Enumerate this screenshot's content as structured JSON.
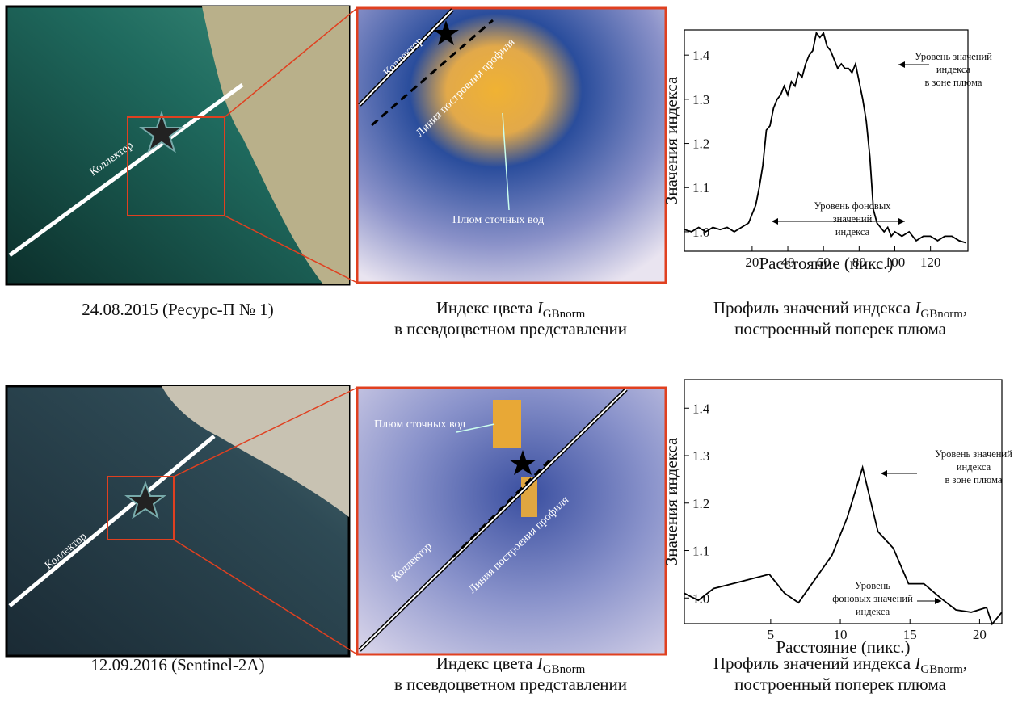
{
  "chart_data": [
    {
      "type": "line",
      "x_label": "Расстояние (пикс.)",
      "y_label": "Значения индекса",
      "x": [
        -18,
        -14,
        -10,
        -6,
        -2,
        2,
        6,
        10,
        14,
        18,
        20,
        22,
        24,
        26,
        28,
        30,
        32,
        34,
        36,
        38,
        40,
        42,
        44,
        46,
        48,
        50,
        52,
        54,
        56,
        58,
        60,
        62,
        64,
        66,
        68,
        70,
        72,
        74,
        76,
        78,
        80,
        82,
        84,
        86,
        88,
        90,
        92,
        94,
        96,
        98,
        100,
        104,
        108,
        112,
        116,
        120,
        124,
        128,
        132,
        136,
        140
      ],
      "series": [
        {
          "color": "#000000",
          "values": [
            1.005,
            1.0,
            1.01,
            1.0,
            1.01,
            1.005,
            1.01,
            1.0,
            1.01,
            1.02,
            1.04,
            1.06,
            1.1,
            1.15,
            1.23,
            1.24,
            1.28,
            1.3,
            1.31,
            1.33,
            1.31,
            1.34,
            1.33,
            1.36,
            1.35,
            1.38,
            1.4,
            1.41,
            1.45,
            1.44,
            1.45,
            1.42,
            1.41,
            1.39,
            1.37,
            1.38,
            1.37,
            1.37,
            1.36,
            1.38,
            1.34,
            1.3,
            1.25,
            1.17,
            1.05,
            1.02,
            1.01,
            1.0,
            1.01,
            0.99,
            1.0,
            0.99,
            1.0,
            0.98,
            0.99,
            0.99,
            0.98,
            0.99,
            0.99,
            0.98,
            0.975
          ]
        }
      ],
      "xlim": [
        -18,
        141
      ],
      "ylim": [
        0.956,
        1.457
      ],
      "xticks": [
        20,
        40,
        60,
        80,
        100,
        120
      ],
      "yticks": [
        {
          "value": 1,
          "label": "1.0"
        },
        1.1,
        1.2,
        1.3,
        1.4
      ],
      "annotations": [
        {
          "lines": [
            "Уровень значений",
            "индекса",
            "в зоне плюма"
          ]
        },
        {
          "lines": [
            "Уровень фоновых",
            "значений",
            "индекса"
          ]
        }
      ]
    },
    {
      "type": "line",
      "x_label": "Расстояние (пикс.)",
      "y_label": "Значения индекса",
      "x": [
        -1.2,
        -0.2,
        0.9,
        2.9,
        4.9,
        6.0,
        7.0,
        8.2,
        9.4,
        10.5,
        11.6,
        12.7,
        13.8,
        14.9,
        16.0,
        17.2,
        18.3,
        19.4,
        20.5,
        20.9,
        21.6
      ],
      "series": [
        {
          "color": "#000000",
          "values": [
            1.01,
            0.995,
            1.02,
            1.035,
            1.05,
            1.01,
            0.99,
            1.04,
            1.09,
            1.17,
            1.275,
            1.14,
            1.105,
            1.03,
            1.03,
            1.0,
            0.975,
            0.97,
            0.98,
            0.945,
            0.97
          ]
        }
      ],
      "xlim": [
        -1.2,
        21.6
      ],
      "ylim": [
        0.946,
        1.46
      ],
      "xticks": [
        5,
        10,
        15,
        20
      ],
      "yticks": [
        {
          "value": 1,
          "label": "1.0"
        },
        1.1,
        1.2,
        1.3,
        1.4
      ],
      "annotations": [
        {
          "lines": [
            "Уровень значений",
            "индекса",
            "в зоне плюма"
          ]
        },
        {
          "lines": [
            "Уровень",
            "фоновых значений",
            "индекса"
          ]
        }
      ]
    }
  ],
  "figure": {
    "rows": [
      {
        "date": "24.08.2015 (Ресурс-П № 1)",
        "collector": "Коллектор",
        "profile_line": "Линия построения профиля",
        "plume": "Плюм сточных вод",
        "index_caption": [
          "Индекс цвета ",
          "I",
          "GBnorm",
          "в псевдоцветном представлении"
        ],
        "profile_caption": [
          "Профиль значений индекса ",
          "I",
          "GBnorm",
          ",",
          "построенный поперек плюма"
        ]
      },
      {
        "date": "12.09.2016 (Sentinel-2A)",
        "collector": "Коллектор",
        "profile_line": "Линия построения профиля",
        "plume": "Плюм сточных вод",
        "index_caption": [
          "Индекс цвета ",
          "I",
          "GBnorm",
          "в псевдоцветном представлении"
        ],
        "profile_caption": [
          "Профиль значений индекса ",
          "I",
          "GBnorm",
          ",",
          "построенный поперек плюма"
        ]
      }
    ]
  }
}
